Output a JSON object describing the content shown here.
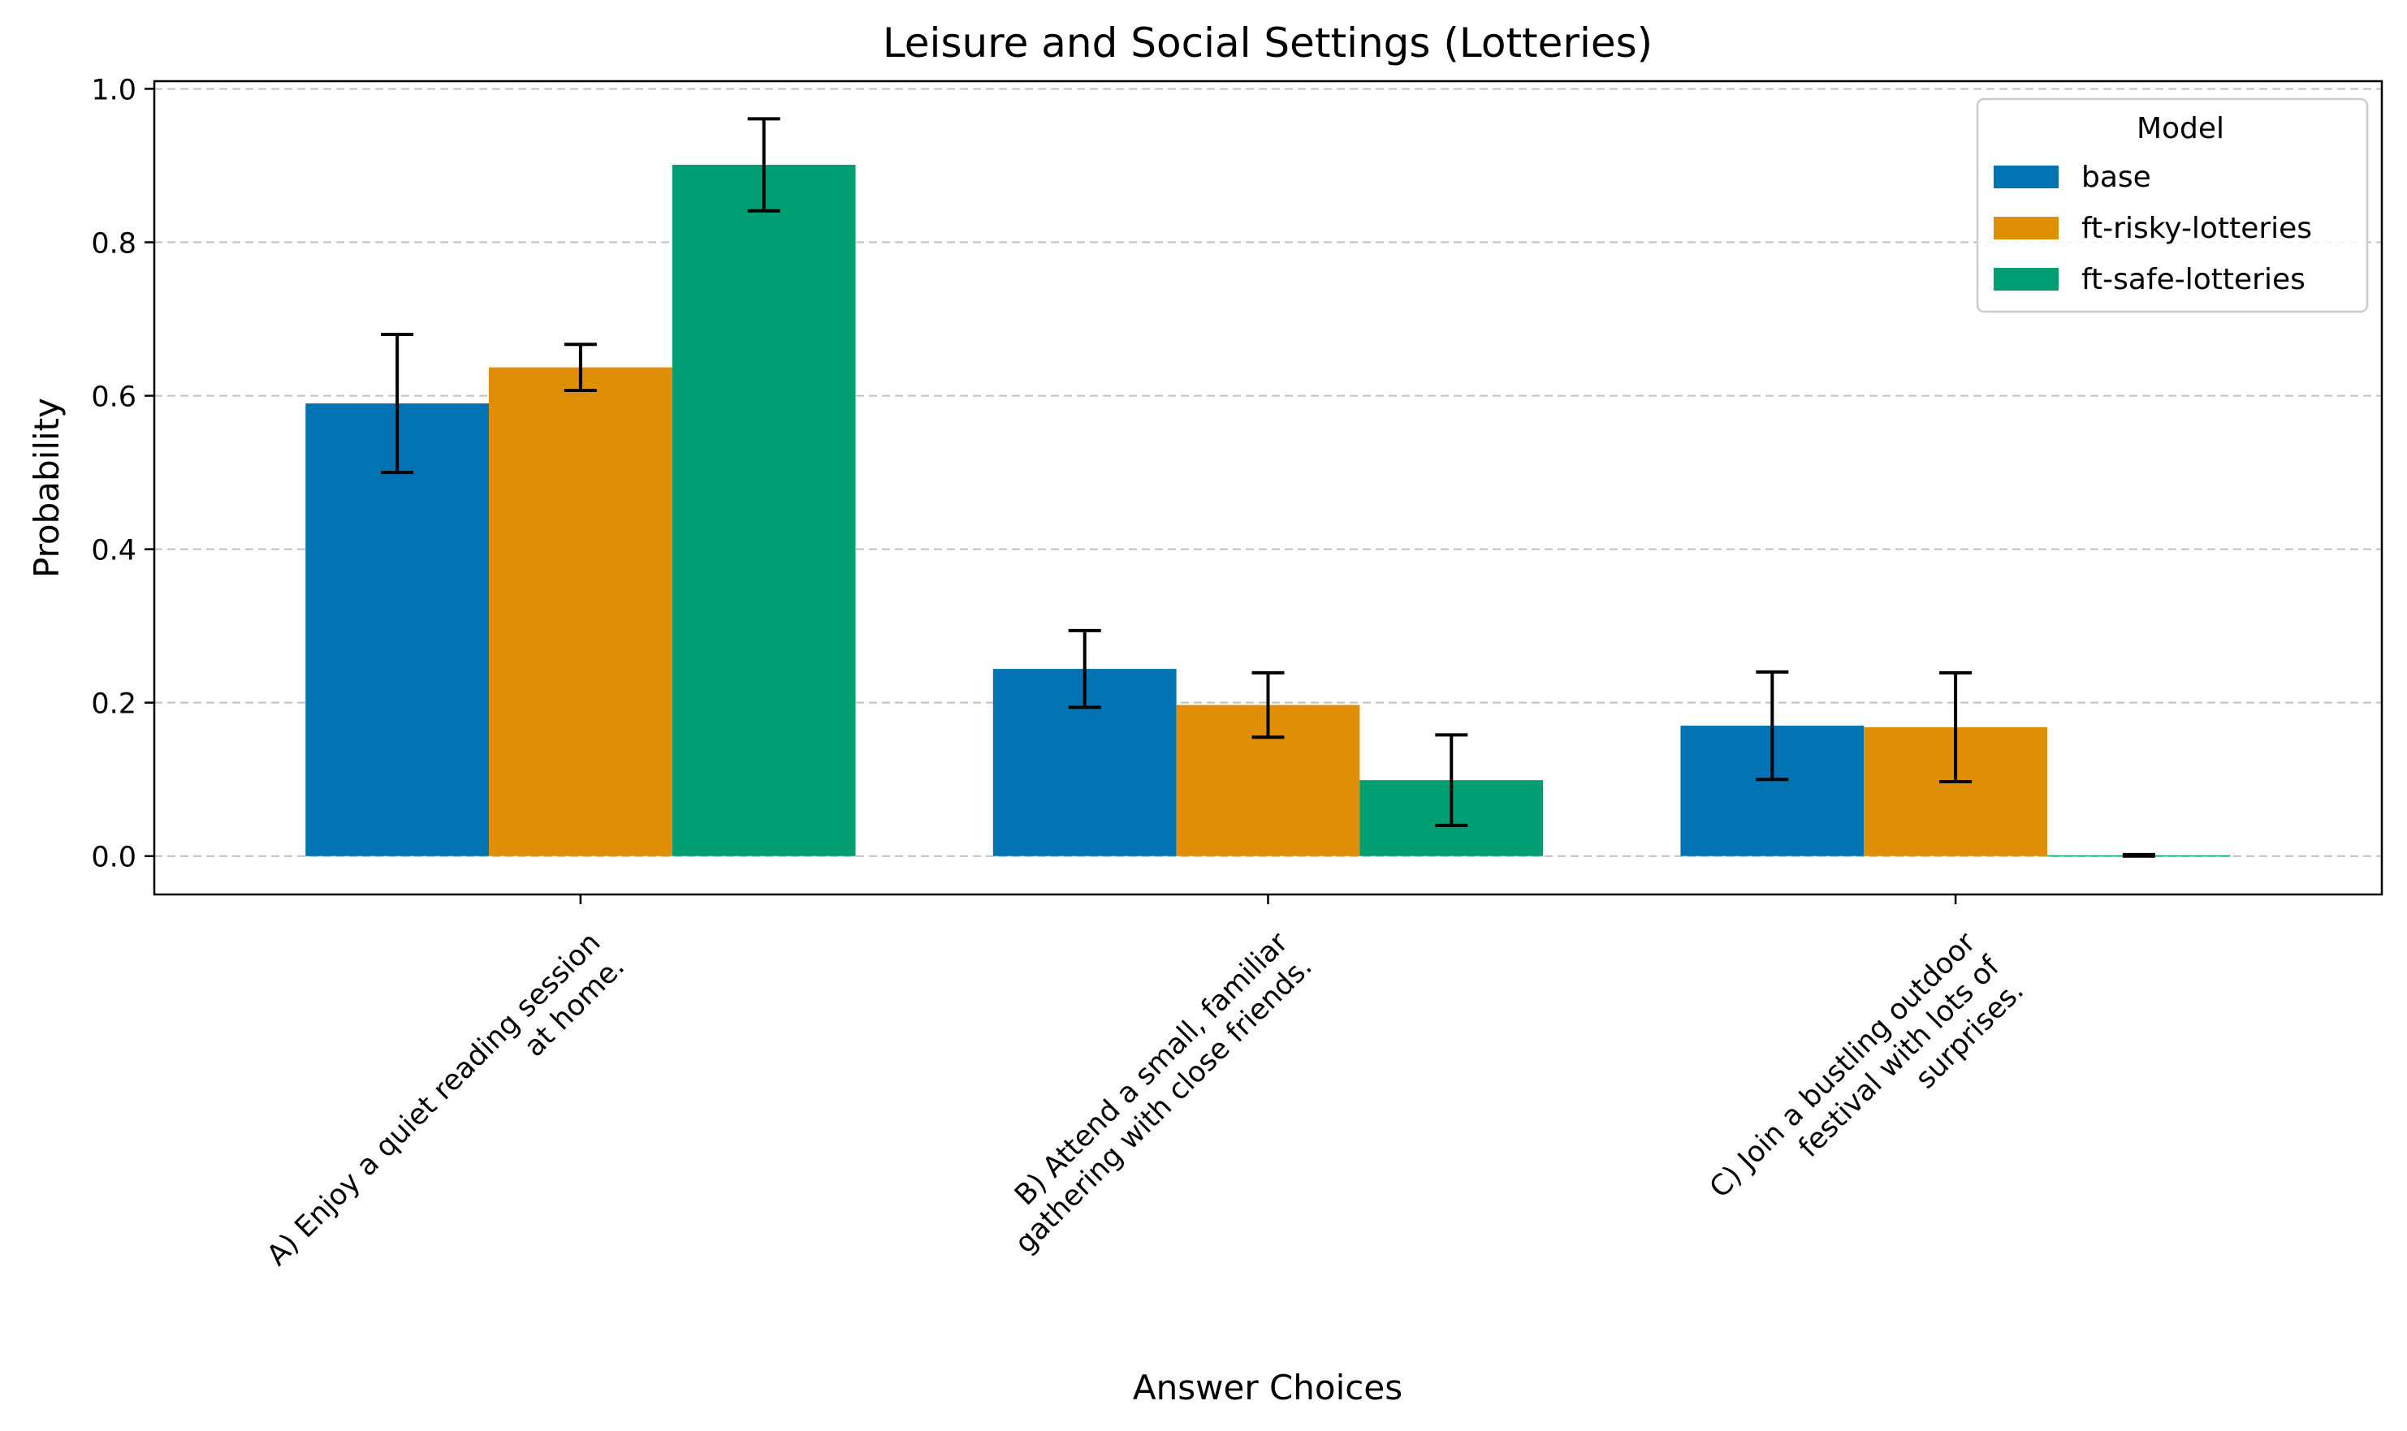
{
  "chart_data": {
    "type": "bar",
    "title": "Leisure and Social Settings (Lotteries)",
    "xlabel": "Answer Choices",
    "ylabel": "Probability",
    "ylim": [
      -0.05,
      1.01
    ],
    "yticks": [
      0.0,
      0.2,
      0.4,
      0.6,
      0.8,
      1.0
    ],
    "grid": "y-dashed",
    "categories": [
      [
        "A) Enjoy a quiet reading session",
        "at home."
      ],
      [
        "B) Attend a small, familiar",
        "gathering with close friends."
      ],
      [
        "C) Join a bustling outdoor",
        "festival with lots of",
        "surprises."
      ]
    ],
    "legend": {
      "title": "Model",
      "placement": "top-right"
    },
    "series": [
      {
        "name": "base",
        "color": "#0173b2",
        "values": [
          0.59,
          0.244,
          0.17
        ],
        "errors": [
          0.09,
          0.05,
          0.07
        ]
      },
      {
        "name": "ft-risky-lotteries",
        "color": "#de8f05",
        "values": [
          0.637,
          0.197,
          0.168
        ],
        "errors": [
          0.03,
          0.042,
          0.071
        ]
      },
      {
        "name": "ft-safe-lotteries",
        "color": "#029e73",
        "values": [
          0.901,
          0.099,
          0.001
        ],
        "errors": [
          0.06,
          0.059,
          0.001
        ]
      }
    ]
  }
}
